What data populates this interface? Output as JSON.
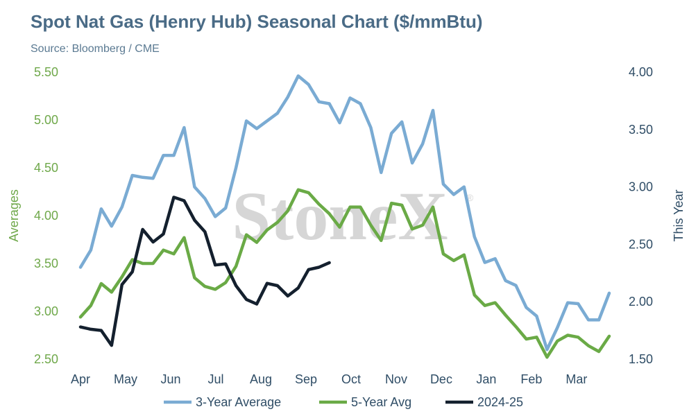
{
  "header": {
    "title": "Spot Nat Gas (Henry Hub) Seasonal Chart ($/mmBtu)",
    "subtitle": "Source: Bloomberg / CME"
  },
  "watermark": {
    "text": "StoneX",
    "mark": "®"
  },
  "colors": {
    "three_year": "#7aabd3",
    "five_year": "#6aaa46",
    "this_year": "#14202e",
    "left_axis": "#6fa84a",
    "right_axis": "#2f4d66"
  },
  "chart_data": {
    "type": "line",
    "title": "Spot Nat Gas (Henry Hub) Seasonal Chart ($/mmBtu)",
    "x_ticks": [
      "Apr",
      "May",
      "Jun",
      "Jul",
      "Aug",
      "Sep",
      "Oct",
      "Nov",
      "Dec",
      "Jan",
      "Feb",
      "Mar"
    ],
    "x_count": 52,
    "y_left": {
      "label": "Averages",
      "range": [
        2.5,
        5.5
      ],
      "ticks": [
        "2.50",
        "3.00",
        "3.50",
        "4.00",
        "4.50",
        "5.00",
        "5.50"
      ]
    },
    "y_right": {
      "label": "This Year",
      "range": [
        1.5,
        4.0
      ],
      "ticks": [
        "1.50",
        "2.00",
        "2.50",
        "3.00",
        "3.50",
        "4.00"
      ]
    },
    "legend_position": "bottom",
    "grid": false,
    "series": [
      {
        "name": "3-Year Average",
        "axis": "left",
        "values": [
          3.46,
          3.64,
          4.07,
          3.89,
          4.09,
          4.42,
          4.4,
          4.39,
          4.63,
          4.63,
          4.92,
          4.3,
          4.18,
          3.99,
          4.08,
          4.5,
          4.99,
          4.91,
          4.99,
          5.07,
          5.24,
          5.46,
          5.37,
          5.19,
          5.17,
          4.97,
          5.23,
          5.17,
          4.92,
          4.45,
          4.86,
          4.98,
          4.55,
          4.75,
          5.1,
          4.33,
          4.22,
          4.3,
          3.78,
          3.51,
          3.55,
          3.32,
          3.27,
          3.04,
          2.95,
          2.6,
          2.83,
          3.09,
          3.08,
          2.91,
          2.91,
          3.19
        ]
      },
      {
        "name": "5-Year Avg",
        "axis": "left",
        "values": [
          2.94,
          3.06,
          3.29,
          3.2,
          3.36,
          3.54,
          3.5,
          3.5,
          3.64,
          3.6,
          3.77,
          3.35,
          3.26,
          3.23,
          3.3,
          3.47,
          3.8,
          3.72,
          3.85,
          3.93,
          4.05,
          4.27,
          4.24,
          4.12,
          4.02,
          3.88,
          4.09,
          4.09,
          3.9,
          3.74,
          4.13,
          4.11,
          3.86,
          3.9,
          4.09,
          3.6,
          3.53,
          3.59,
          3.17,
          3.06,
          3.09,
          2.96,
          2.84,
          2.71,
          2.73,
          2.52,
          2.69,
          2.75,
          2.73,
          2.64,
          2.58,
          2.74
        ]
      },
      {
        "name": "2024-25",
        "axis": "right",
        "values": [
          1.78,
          1.76,
          1.75,
          1.62,
          2.15,
          2.26,
          2.63,
          2.52,
          2.59,
          2.91,
          2.88,
          2.71,
          2.61,
          2.32,
          2.33,
          2.14,
          2.02,
          1.98,
          2.16,
          2.14,
          2.05,
          2.12,
          2.28,
          2.3,
          2.34
        ]
      }
    ]
  }
}
